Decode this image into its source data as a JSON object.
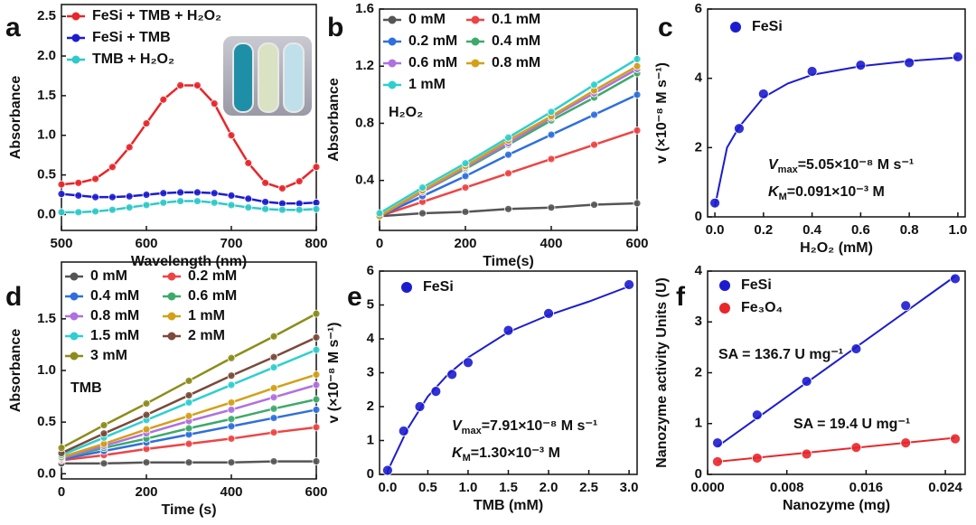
{
  "chart_data": [
    {
      "type": "line",
      "panel_label": "a",
      "x_label": "Wavelength (nm)",
      "y_label": "Absorbance",
      "x": [
        500,
        520,
        540,
        560,
        580,
        600,
        620,
        640,
        660,
        680,
        700,
        720,
        740,
        760,
        780,
        800
      ],
      "series": [
        {
          "name": "FeSi + TMB + H₂O₂",
          "color": "#e8262a",
          "values": [
            0.38,
            0.4,
            0.45,
            0.6,
            0.85,
            1.15,
            1.45,
            1.63,
            1.63,
            1.4,
            1.0,
            0.65,
            0.4,
            0.33,
            0.42,
            0.6
          ]
        },
        {
          "name": "FeSi + TMB",
          "color": "#1c1ccf",
          "values": [
            0.26,
            0.24,
            0.22,
            0.22,
            0.23,
            0.25,
            0.27,
            0.28,
            0.28,
            0.27,
            0.24,
            0.2,
            0.16,
            0.14,
            0.14,
            0.15
          ]
        },
        {
          "name": "TMB + H₂O₂",
          "color": "#2ec9c9",
          "values": [
            0.03,
            0.03,
            0.04,
            0.06,
            0.09,
            0.12,
            0.15,
            0.17,
            0.17,
            0.15,
            0.12,
            0.09,
            0.07,
            0.06,
            0.06,
            0.07
          ]
        }
      ],
      "xlim": [
        500,
        800
      ],
      "xticks": [
        500,
        600,
        700,
        800
      ],
      "ylim": [
        -0.2,
        2.65
      ],
      "yticks": [
        {
          "value": 0,
          "label": "0.0"
        },
        0.5,
        {
          "value": 1,
          "label": "1.0"
        },
        1.5,
        {
          "value": 2,
          "label": "2.0"
        },
        2.5
      ],
      "legend": "upper left"
    },
    {
      "type": "line",
      "panel_label": "b",
      "x_label": "Time(s)",
      "y_label": "Absorbance",
      "annotations": [
        "H₂O₂"
      ],
      "x": [
        0,
        100,
        200,
        300,
        400,
        500,
        600
      ],
      "series": [
        {
          "name": "0 mM",
          "color": "#555555",
          "values": [
            0.15,
            0.17,
            0.18,
            0.2,
            0.21,
            0.23,
            0.24
          ]
        },
        {
          "name": "0.1 mM",
          "color": "#ee4444",
          "values": [
            0.15,
            0.25,
            0.35,
            0.45,
            0.55,
            0.65,
            0.75
          ]
        },
        {
          "name": "0.2 mM",
          "color": "#2f6fdd",
          "values": [
            0.15,
            0.29,
            0.43,
            0.58,
            0.72,
            0.86,
            1.0
          ]
        },
        {
          "name": "0.4 mM",
          "color": "#3daa6a",
          "values": [
            0.15,
            0.32,
            0.48,
            0.65,
            0.82,
            0.98,
            1.15
          ]
        },
        {
          "name": "0.6 mM",
          "color": "#b070e0",
          "values": [
            0.15,
            0.32,
            0.49,
            0.66,
            0.84,
            1.01,
            1.18
          ]
        },
        {
          "name": "0.8 mM",
          "color": "#d4a017",
          "values": [
            0.15,
            0.33,
            0.5,
            0.68,
            0.85,
            1.03,
            1.2
          ]
        },
        {
          "name": "1 mM",
          "color": "#2ecfcf",
          "values": [
            0.17,
            0.35,
            0.52,
            0.7,
            0.88,
            1.07,
            1.25
          ]
        }
      ],
      "xlim": [
        0,
        600
      ],
      "xticks": [
        0,
        200,
        400,
        600
      ],
      "ylim": [
        0.05,
        1.6
      ],
      "yticks": [
        0.4,
        0.8,
        1.2,
        1.6
      ],
      "legend": "upper left"
    },
    {
      "type": "scatter",
      "panel_label": "c",
      "x_label": "H₂O₂ (mM)",
      "y_label": "v (×10⁻⁸ M s⁻¹)",
      "annotations": [
        [
          "V",
          "max",
          "=5.05×10⁻⁸ M s⁻¹"
        ],
        [
          "K",
          "M",
          "=0.091×10⁻³ M"
        ]
      ],
      "series": [
        {
          "name": "FeSi",
          "color": "#1c1ccf",
          "x": [
            0,
            0.1,
            0.2,
            0.4,
            0.6,
            0.8,
            1.0
          ],
          "values": [
            0.4,
            2.55,
            3.55,
            4.2,
            4.38,
            4.45,
            4.62
          ],
          "fit": {
            "x": [
              0,
              0.05,
              0.1,
              0.2,
              0.3,
              0.4,
              0.6,
              0.8,
              1.0
            ],
            "values": [
              0.3,
              2.0,
              2.6,
              3.45,
              3.85,
              4.1,
              4.35,
              4.5,
              4.6
            ]
          }
        }
      ],
      "xlim": [
        -0.03,
        1.03
      ],
      "xticks": [
        {
          "value": 0,
          "label": "0.0"
        },
        0.2,
        0.4,
        0.6,
        0.8,
        {
          "value": 1,
          "label": "1.0"
        }
      ],
      "ylim": [
        0,
        6
      ],
      "yticks": [
        0,
        2,
        4,
        6
      ],
      "legend": "upper left"
    },
    {
      "type": "line",
      "panel_label": "d",
      "x_label": "Time (s)",
      "y_label": "Absorbance",
      "annotations": [
        "TMB"
      ],
      "x": [
        0,
        100,
        200,
        300,
        400,
        500,
        600
      ],
      "series": [
        {
          "name": "0 mM",
          "color": "#555555",
          "values": [
            0.1,
            0.1,
            0.11,
            0.11,
            0.11,
            0.12,
            0.12
          ]
        },
        {
          "name": "0.2 mM",
          "color": "#ee4444",
          "values": [
            0.13,
            0.18,
            0.24,
            0.29,
            0.34,
            0.4,
            0.45
          ]
        },
        {
          "name": "0.4 mM",
          "color": "#2f6fdd",
          "values": [
            0.14,
            0.22,
            0.3,
            0.38,
            0.46,
            0.54,
            0.62
          ]
        },
        {
          "name": "0.6 mM",
          "color": "#3daa6a",
          "values": [
            0.15,
            0.25,
            0.34,
            0.44,
            0.53,
            0.63,
            0.72
          ]
        },
        {
          "name": "0.8 mM",
          "color": "#b070e0",
          "values": [
            0.15,
            0.27,
            0.39,
            0.51,
            0.62,
            0.74,
            0.86
          ]
        },
        {
          "name": "1 mM",
          "color": "#d4a017",
          "values": [
            0.16,
            0.29,
            0.43,
            0.56,
            0.69,
            0.83,
            0.96
          ]
        },
        {
          "name": "1.5 mM",
          "color": "#2ecfcf",
          "values": [
            0.18,
            0.35,
            0.52,
            0.69,
            0.86,
            1.03,
            1.2
          ]
        },
        {
          "name": "2 mM",
          "color": "#7a4a3a",
          "values": [
            0.2,
            0.39,
            0.57,
            0.76,
            0.95,
            1.13,
            1.32
          ]
        },
        {
          "name": "3 mM",
          "color": "#8c8c1a",
          "values": [
            0.25,
            0.47,
            0.68,
            0.9,
            1.12,
            1.33,
            1.55
          ]
        }
      ],
      "xlim": [
        0,
        600
      ],
      "xticks": [
        0,
        200,
        400,
        600
      ],
      "ylim": [
        -0.05,
        2.05
      ],
      "yticks": [
        {
          "value": 0,
          "label": "0.0"
        },
        0.5,
        {
          "value": 1,
          "label": "1.0"
        },
        1.5
      ],
      "legend": "upper left"
    },
    {
      "type": "scatter",
      "panel_label": "e",
      "x_label": "TMB (mM)",
      "y_label": "v (×10⁻⁸ M s⁻¹)",
      "annotations": [
        [
          "V",
          "max",
          "=7.91×10⁻⁸ M s⁻¹"
        ],
        [
          "K",
          "M",
          "=1.30×10⁻³ M"
        ]
      ],
      "series": [
        {
          "name": "FeSi",
          "color": "#1c1ccf",
          "x": [
            0,
            0.2,
            0.4,
            0.6,
            0.8,
            1.0,
            1.5,
            2.0,
            3.0
          ],
          "values": [
            0.12,
            1.28,
            2.0,
            2.45,
            2.95,
            3.3,
            4.25,
            4.75,
            5.6
          ],
          "fit": {
            "x": [
              0,
              0.25,
              0.5,
              0.75,
              1,
              1.5,
              2,
              2.5,
              3
            ],
            "values": [
              0.1,
              1.35,
              2.3,
              2.95,
              3.45,
              4.2,
              4.7,
              5.1,
              5.55
            ]
          }
        }
      ],
      "xlim": [
        -0.1,
        3.1
      ],
      "xticks": [
        {
          "value": 0,
          "label": "0.0"
        },
        0.5,
        {
          "value": 1,
          "label": "1.0"
        },
        1.5,
        {
          "value": 2,
          "label": "2.0"
        },
        2.5,
        {
          "value": 3,
          "label": "3.0"
        }
      ],
      "ylim": [
        0,
        6
      ],
      "yticks": [
        0,
        1,
        2,
        3,
        4,
        5,
        6
      ],
      "legend": "upper left"
    },
    {
      "type": "scatter",
      "panel_label": "f",
      "x_label": "Nanozyme (mg)",
      "y_label": "Nanozyme activity Units (U)",
      "annotations": [
        "SA = 136.7 U mg⁻¹",
        "SA = 19.4 U mg⁻¹"
      ],
      "series": [
        {
          "name": "FeSi",
          "color": "#1c1ccf",
          "x": [
            0.001,
            0.005,
            0.01,
            0.015,
            0.02,
            0.025
          ],
          "values": [
            0.62,
            1.17,
            1.83,
            2.47,
            3.32,
            3.85
          ],
          "fit": {
            "x": [
              0.001,
              0.025
            ],
            "values": [
              0.55,
              3.9
            ]
          }
        },
        {
          "name": "Fe₃O₄",
          "color": "#e8262a",
          "x": [
            0.001,
            0.005,
            0.01,
            0.015,
            0.02,
            0.025
          ],
          "values": [
            0.25,
            0.32,
            0.4,
            0.53,
            0.62,
            0.7
          ],
          "fit": {
            "x": [
              0.001,
              0.025
            ],
            "values": [
              0.25,
              0.72
            ]
          }
        }
      ],
      "xlim": [
        0,
        0.026
      ],
      "xticks": [
        {
          "value": 0,
          "label": "0.000"
        },
        0.008,
        0.016,
        0.024
      ],
      "ylim": [
        0,
        4
      ],
      "yticks": [
        0,
        1,
        2,
        3,
        4
      ],
      "legend": "upper left"
    }
  ]
}
